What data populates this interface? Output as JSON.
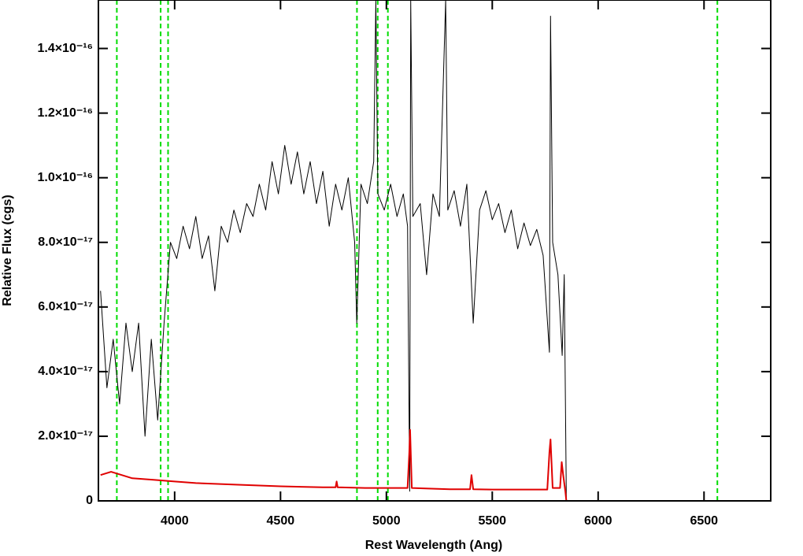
{
  "chart_data": {
    "type": "line",
    "xlabel": "Rest Wavelength (Ang)",
    "ylabel": "Relative Flux (cgs)",
    "xlim": [
      3640,
      6815
    ],
    "ylim": [
      0,
      1.55e-16
    ],
    "xticks": [
      4000,
      4500,
      5000,
      5500,
      6000,
      6500
    ],
    "yticks": [
      0,
      {
        "value": 2e-17,
        "label": "2.0×10⁻¹⁷"
      },
      {
        "value": 4e-17,
        "label": "4.0×10⁻¹⁷"
      },
      {
        "value": 6e-17,
        "label": "6.0×10⁻¹⁷"
      },
      {
        "value": 8e-17,
        "label": "8.0×10⁻¹⁷"
      },
      {
        "value": 1e-16,
        "label": "1.0×10⁻¹⁶"
      },
      {
        "value": 1.2e-16,
        "label": "1.2×10⁻¹⁶"
      },
      {
        "value": 1.4e-16,
        "label": "1.4×10⁻¹⁶"
      }
    ],
    "line_markers": {
      "color": "#00dd00",
      "x": [
        3727,
        3934,
        3969,
        4861,
        4959,
        5007,
        6563
      ]
    },
    "series": [
      {
        "color": "#000000",
        "x": [
          3650,
          3680,
          3710,
          3740,
          3770,
          3800,
          3830,
          3860,
          3890,
          3920,
          3950,
          3980,
          4010,
          4040,
          4070,
          4100,
          4130,
          4160,
          4190,
          4220,
          4250,
          4280,
          4310,
          4340,
          4370,
          4400,
          4430,
          4460,
          4490,
          4520,
          4550,
          4580,
          4610,
          4640,
          4670,
          4700,
          4730,
          4760,
          4790,
          4820,
          4850,
          4860,
          4880,
          4910,
          4940,
          4950,
          4960,
          4990,
          5020,
          5050,
          5080,
          5100,
          5110,
          5115,
          5125,
          5160,
          5190,
          5220,
          5250,
          5280,
          5290,
          5320,
          5350,
          5380,
          5410,
          5440,
          5470,
          5500,
          5530,
          5560,
          5590,
          5620,
          5650,
          5680,
          5710,
          5740,
          5770,
          5775,
          5785,
          5810,
          5830,
          5840,
          5850,
          6815
        ],
        "values": [
          6.5e-17,
          3.5e-17,
          5e-17,
          3e-17,
          5.5e-17,
          4e-17,
          5.5e-17,
          2e-17,
          5e-17,
          2.5e-17,
          5.5e-17,
          8e-17,
          7.5e-17,
          8.5e-17,
          7.8e-17,
          8.8e-17,
          7.5e-17,
          8.2e-17,
          6.5e-17,
          8.5e-17,
          8e-17,
          9e-17,
          8.3e-17,
          9.2e-17,
          8.8e-17,
          9.8e-17,
          9e-17,
          1.05e-16,
          9.5e-17,
          1.1e-16,
          9.8e-17,
          1.08e-16,
          9.5e-17,
          1.05e-16,
          9.2e-17,
          1.02e-16,
          8.5e-17,
          9.8e-17,
          9e-17,
          1e-16,
          8e-17,
          5.5e-17,
          9.8e-17,
          9.2e-17,
          1.05e-16,
          1.55e-16,
          9.5e-17,
          9e-17,
          9.8e-17,
          8.8e-17,
          9.5e-17,
          8.5e-17,
          3e-18,
          1.55e-16,
          8.8e-17,
          9.2e-17,
          7e-17,
          9.5e-17,
          8.8e-17,
          1.55e-16,
          9e-17,
          9.6e-17,
          8.5e-17,
          9.8e-17,
          5.5e-17,
          9e-17,
          9.6e-17,
          8.7e-17,
          9.2e-17,
          8.3e-17,
          9e-17,
          7.8e-17,
          8.6e-17,
          7.9e-17,
          8.4e-17,
          7.6e-17,
          4.6e-17,
          1.5e-16,
          8e-17,
          7e-17,
          4.5e-17,
          7e-17,
          0,
          0
        ]
      },
      {
        "color": "#e00000",
        "x": [
          3650,
          3700,
          3750,
          3800,
          3900,
          4000,
          4100,
          4300,
          4500,
          4700,
          4760,
          4765,
          4770,
          4900,
          5000,
          5100,
          5108,
          5112,
          5120,
          5200,
          5300,
          5395,
          5402,
          5410,
          5500,
          5600,
          5700,
          5760,
          5770,
          5775,
          5785,
          5800,
          5820,
          5828,
          5835,
          5845,
          5850,
          6815
        ],
        "values": [
          8e-18,
          9e-18,
          8e-18,
          7e-18,
          6.5e-18,
          6e-18,
          5.5e-18,
          5e-18,
          4.5e-18,
          4.2e-18,
          4.2e-18,
          6e-18,
          4.2e-18,
          4e-18,
          4e-18,
          4e-18,
          1.5e-17,
          2.2e-17,
          4e-18,
          3.8e-18,
          3.6e-18,
          3.6e-18,
          8e-18,
          3.6e-18,
          3.5e-18,
          3.5e-18,
          3.5e-18,
          3.5e-18,
          1.5e-17,
          1.9e-17,
          4e-18,
          4e-18,
          4e-18,
          1.2e-17,
          8e-18,
          3e-18,
          0,
          0
        ]
      }
    ]
  }
}
